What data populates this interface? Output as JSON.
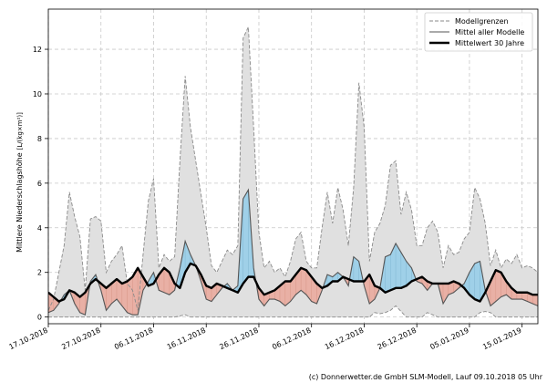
{
  "chart_data": {
    "type": "area",
    "ylabel": "Mittlere Niederschlagshöhe [ L / (kg × m²) ]",
    "ylabel_main": "Mittlere Niederschlagshöhe",
    "ylabel_unit": "[L/(kg×m²)]",
    "ylim": [
      -0.3,
      13.8
    ],
    "yticks": [
      0,
      2,
      4,
      6,
      8,
      10,
      12
    ],
    "xlim": [
      0,
      93
    ],
    "xticks": [
      {
        "x": 0,
        "label": "17.10.2018"
      },
      {
        "x": 10,
        "label": "27.10.2018"
      },
      {
        "x": 20,
        "label": "06.11.2018"
      },
      {
        "x": 30,
        "label": "16.11.2018"
      },
      {
        "x": 40,
        "label": "26.11.2018"
      },
      {
        "x": 50,
        "label": "06.12.2018"
      },
      {
        "x": 60,
        "label": "16.12.2018"
      },
      {
        "x": 70,
        "label": "26.12.2018"
      },
      {
        "x": 80,
        "label": "05.01.2019"
      },
      {
        "x": 90,
        "label": "15.01.2019"
      }
    ],
    "grid": true,
    "legend_position": "top-right",
    "legend": [
      "Modellgrenzen",
      "Mittel aller Modelle",
      "Mittelwert 30 Jahre"
    ],
    "x": [
      0,
      1,
      2,
      3,
      4,
      5,
      6,
      7,
      8,
      9,
      10,
      11,
      12,
      13,
      14,
      15,
      16,
      17,
      18,
      19,
      20,
      21,
      22,
      23,
      24,
      25,
      26,
      27,
      28,
      29,
      30,
      31,
      32,
      33,
      34,
      35,
      36,
      37,
      38,
      39,
      40,
      41,
      42,
      43,
      44,
      45,
      46,
      47,
      48,
      49,
      50,
      51,
      52,
      53,
      54,
      55,
      56,
      57,
      58,
      59,
      60,
      61,
      62,
      63,
      64,
      65,
      66,
      67,
      68,
      69,
      70,
      71,
      72,
      73,
      74,
      75,
      76,
      77,
      78,
      79,
      80,
      81,
      82,
      83,
      84,
      85,
      86,
      87,
      88,
      89,
      90,
      91,
      92,
      93
    ],
    "series": [
      {
        "name": "Modellgrenzen (oben)",
        "values": [
          0.3,
          0.8,
          2.0,
          3.2,
          5.6,
          4.5,
          3.6,
          1.2,
          4.4,
          4.5,
          4.3,
          2.0,
          2.5,
          2.8,
          3.2,
          1.5,
          1.2,
          0.3,
          2.8,
          5.2,
          6.2,
          2.2,
          2.8,
          2.5,
          2.7,
          7.0,
          10.8,
          8.5,
          7.0,
          5.5,
          4.0,
          2.3,
          2.0,
          2.5,
          3.0,
          2.8,
          3.2,
          12.5,
          13.0,
          8.5,
          3.8,
          2.2,
          2.5,
          2.0,
          2.2,
          1.8,
          2.5,
          3.5,
          3.8,
          2.5,
          2.2,
          2.2,
          4.0,
          5.6,
          4.2,
          5.8,
          4.8,
          3.2,
          5.8,
          10.5,
          8.5,
          2.5,
          3.8,
          4.2,
          5.0,
          6.8,
          7.0,
          4.6,
          5.6,
          4.8,
          3.2,
          3.2,
          4.0,
          4.3,
          3.8,
          2.2,
          3.2,
          2.8,
          2.9,
          3.5,
          3.8,
          5.8,
          5.3,
          4.2,
          2.3,
          3.0,
          2.2,
          2.6,
          2.4,
          2.8,
          2.2,
          2.3,
          2.2,
          2.0
        ]
      },
      {
        "name": "Modellgrenzen (unten)",
        "values": [
          0.0,
          0.0,
          0.0,
          0.0,
          0.0,
          0.0,
          0.0,
          0.0,
          0.0,
          0.0,
          0.0,
          0.0,
          0.0,
          0.0,
          0.0,
          0.0,
          0.0,
          0.0,
          0.0,
          0.0,
          0.0,
          0.0,
          0.0,
          0.0,
          0.0,
          0.05,
          0.1,
          0.0,
          0.0,
          0.0,
          0.0,
          0.0,
          0.0,
          0.0,
          0.0,
          0.0,
          0.0,
          0.0,
          0.0,
          0.0,
          0.0,
          0.0,
          0.0,
          0.0,
          0.0,
          0.0,
          0.0,
          0.0,
          0.0,
          0.0,
          0.0,
          0.0,
          0.0,
          0.0,
          0.0,
          0.0,
          0.0,
          0.0,
          0.0,
          0.0,
          0.0,
          0.0,
          0.2,
          0.15,
          0.2,
          0.3,
          0.5,
          0.25,
          0.0,
          0.0,
          0.0,
          0.0,
          0.2,
          0.1,
          0.0,
          0.0,
          0.0,
          0.0,
          0.0,
          0.0,
          0.0,
          0.0,
          0.2,
          0.25,
          0.2,
          0.0,
          0.0,
          0.0,
          0.0,
          0.0,
          0.0,
          0.0,
          0.0,
          0.0
        ]
      },
      {
        "name": "Mittel aller Modelle",
        "values": [
          0.2,
          0.3,
          0.6,
          1.0,
          1.2,
          0.6,
          0.2,
          0.1,
          1.6,
          1.9,
          1.2,
          0.3,
          0.6,
          0.8,
          0.5,
          0.2,
          0.1,
          0.1,
          1.2,
          1.6,
          2.0,
          1.2,
          1.1,
          1.0,
          1.2,
          2.2,
          3.4,
          2.8,
          2.3,
          1.6,
          0.8,
          0.7,
          1.0,
          1.3,
          1.5,
          1.2,
          1.4,
          5.3,
          5.7,
          2.2,
          0.8,
          0.5,
          0.8,
          0.8,
          0.7,
          0.5,
          0.7,
          1.0,
          1.2,
          1.0,
          0.7,
          0.6,
          1.2,
          1.9,
          1.8,
          2.0,
          1.8,
          1.4,
          2.7,
          2.5,
          1.4,
          0.6,
          0.8,
          1.3,
          2.7,
          2.8,
          3.3,
          2.9,
          2.5,
          2.2,
          1.6,
          1.5,
          1.2,
          1.5,
          1.5,
          0.6,
          1.0,
          1.1,
          1.3,
          1.5,
          2.0,
          2.4,
          2.5,
          1.2,
          0.5,
          0.7,
          0.9,
          1.0,
          0.8,
          0.8,
          0.8,
          0.7,
          0.6,
          0.5
        ]
      },
      {
        "name": "Mittelwert 30 Jahre",
        "values": [
          1.1,
          0.9,
          0.7,
          0.8,
          1.2,
          1.1,
          0.9,
          1.1,
          1.5,
          1.7,
          1.5,
          1.3,
          1.5,
          1.7,
          1.5,
          1.6,
          1.8,
          2.2,
          1.8,
          1.4,
          1.5,
          1.9,
          2.2,
          2.0,
          1.5,
          1.3,
          2.0,
          2.4,
          2.3,
          1.9,
          1.4,
          1.3,
          1.5,
          1.4,
          1.3,
          1.2,
          1.1,
          1.5,
          1.8,
          1.8,
          1.3,
          1.0,
          1.1,
          1.2,
          1.4,
          1.6,
          1.6,
          1.9,
          2.2,
          2.1,
          1.8,
          1.5,
          1.3,
          1.4,
          1.6,
          1.6,
          1.8,
          1.7,
          1.6,
          1.6,
          1.6,
          1.9,
          1.4,
          1.3,
          1.1,
          1.2,
          1.3,
          1.3,
          1.4,
          1.6,
          1.7,
          1.8,
          1.6,
          1.5,
          1.5,
          1.5,
          1.5,
          1.6,
          1.5,
          1.3,
          1.0,
          0.8,
          0.7,
          1.1,
          1.6,
          2.1,
          2.0,
          1.6,
          1.3,
          1.1,
          1.1,
          1.1,
          1.0,
          1.0
        ]
      }
    ],
    "colors": {
      "band_fill": "#e0e0e0",
      "band_edge": "#8a8a8a",
      "above_fill": "#9fd0e8",
      "below_fill": "#e9b0a5",
      "mean_line": "#555555",
      "clim_line": "#000000",
      "grid": "#c8c8c8"
    },
    "footer": "(c) Donnerwetter.de GmbH SLM-Modell, Lauf 09.10.2018 05 Uhr"
  }
}
